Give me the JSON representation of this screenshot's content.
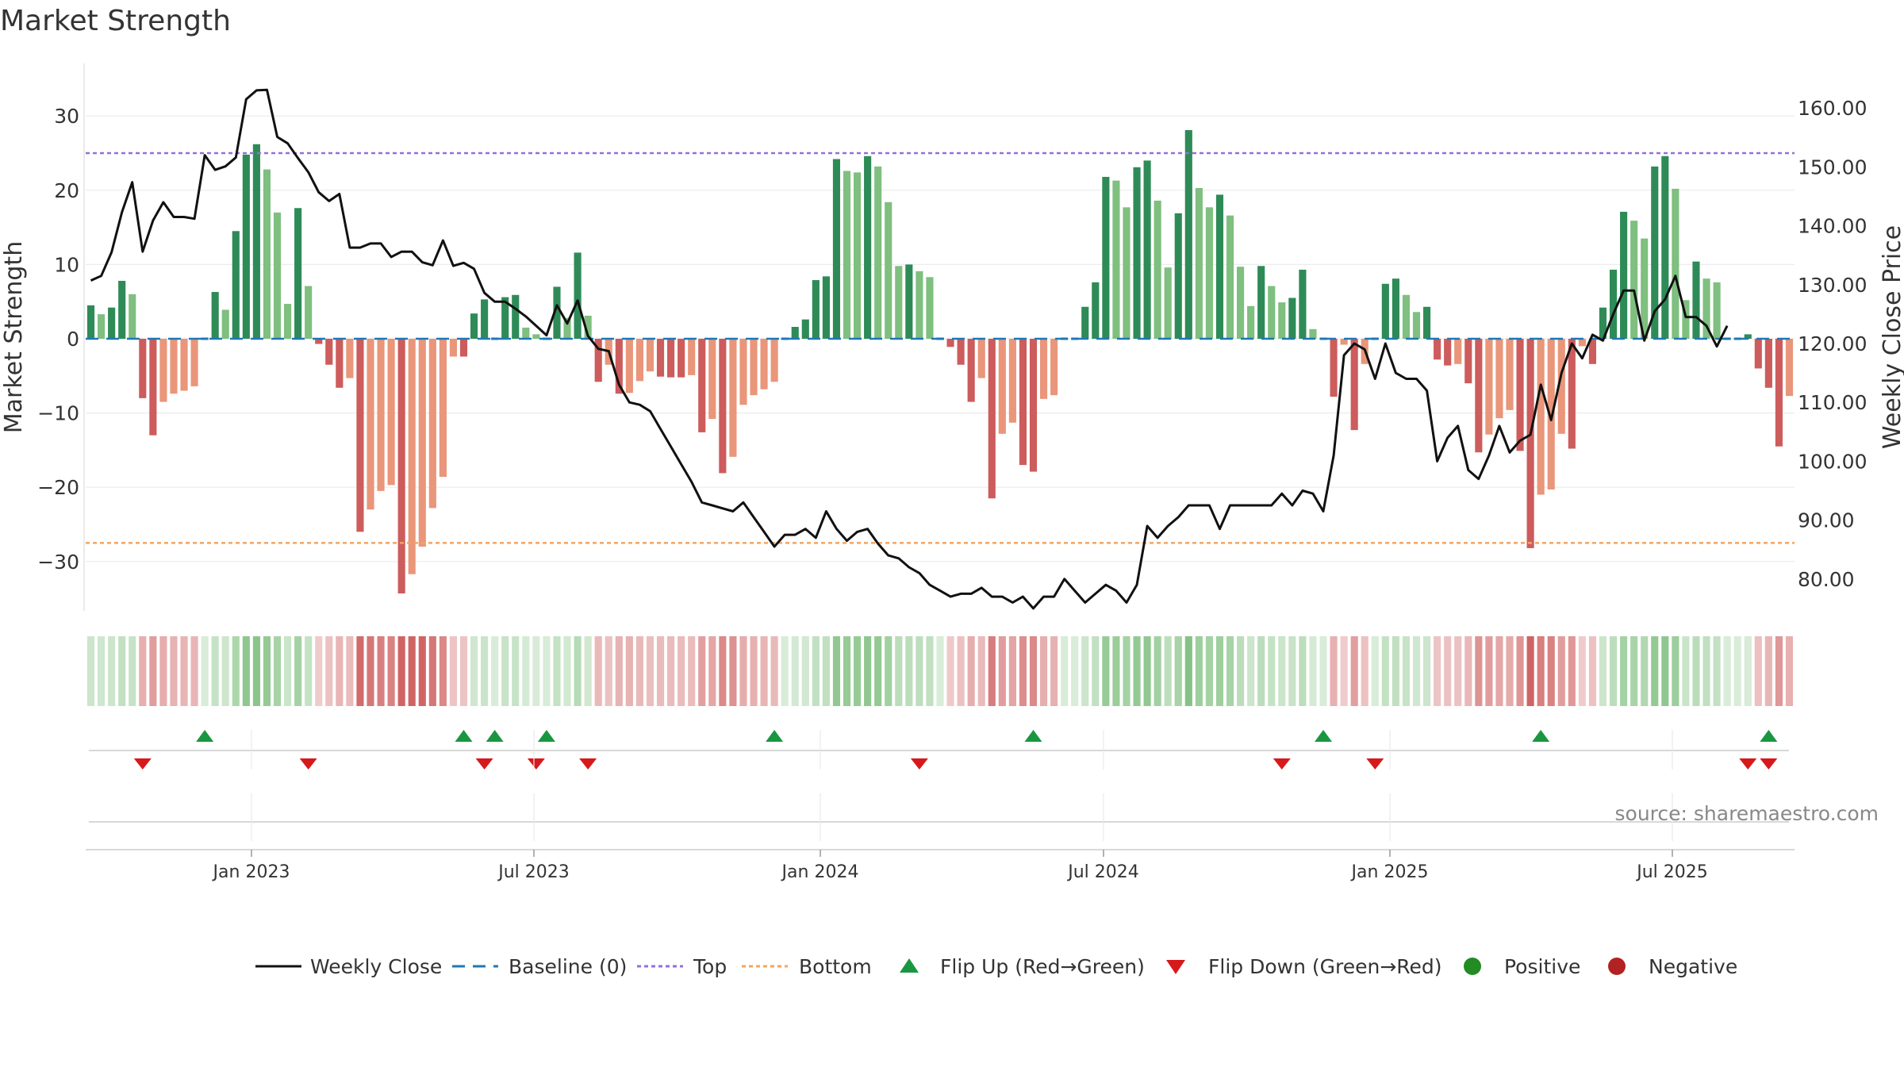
{
  "title": "Market Strength",
  "source": "source: sharemaestro.com",
  "colors": {
    "strong_green": "#2e8b57",
    "light_green": "#7fbf7f",
    "strong_red": "#cd5c5c",
    "light_red": "#e9967a",
    "top_line": "#9370db",
    "bottom_line": "#f4a460",
    "baseline": "#1f77b4",
    "close_line": "#111111",
    "flip_up": "#1a9641",
    "flip_down": "#d7191c",
    "positive": "#228b22",
    "negative": "#b22222"
  },
  "chart_data": {
    "type": "bar",
    "left_axis": {
      "label": "Market Strength",
      "ticks": [
        30,
        20,
        10,
        0,
        -10,
        -20,
        -30
      ],
      "ylim": [
        -37,
        37
      ]
    },
    "right_axis": {
      "label": "Weekly Close Price",
      "ticks": [
        "160.00",
        "150.00",
        "140.00",
        "130.00",
        "120.00",
        "110.00",
        "100.00",
        "90.00",
        "80.00"
      ],
      "ylim": [
        72,
        170
      ]
    },
    "x_ticks": [
      "Jan 2023",
      "Jul 2023",
      "Jan 2024",
      "Jul 2024",
      "Jan 2025",
      "Jul 2025"
    ],
    "top_level": 25,
    "bottom_level": -27.5,
    "strength": [
      4.5,
      3.3,
      4.2,
      7.8,
      6.0,
      -8.0,
      -13.0,
      -8.5,
      -7.4,
      -7.0,
      -6.4,
      0,
      6.3,
      3.9,
      14.5,
      24.8,
      26.2,
      22.8,
      17.0,
      4.7,
      17.6,
      7.1,
      -0.7,
      -3.5,
      -6.6,
      -5.3,
      -26.0,
      -23.0,
      -20.5,
      -19.7,
      -34.3,
      -31.7,
      -28.0,
      -22.8,
      -18.6,
      -2.4,
      -2.4,
      3.4,
      5.3,
      0,
      5.6,
      5.9,
      1.5,
      0.6,
      0,
      7.0,
      2.8,
      11.6,
      3.1,
      -5.8,
      -3.5,
      -7.4,
      -7.3,
      -5.7,
      -4.4,
      -5.1,
      -5.2,
      -5.2,
      -4.9,
      -12.6,
      -10.8,
      -18.1,
      -15.9,
      -8.9,
      -7.6,
      -6.8,
      -5.8,
      0,
      1.6,
      2.6,
      7.9,
      8.4,
      24.2,
      22.6,
      22.4,
      24.6,
      23.2,
      18.4,
      9.8,
      10.0,
      9.1,
      8.3,
      0,
      -1.1,
      -3.5,
      -8.5,
      -5.3,
      -21.5,
      -12.8,
      -11.3,
      -17.0,
      -17.9,
      -8.1,
      -7.6,
      0,
      0,
      4.3,
      7.6,
      21.8,
      21.3,
      17.7,
      23.1,
      24.0,
      18.6,
      9.6,
      16.9,
      28.1,
      20.3,
      17.7,
      19.4,
      16.6,
      9.7,
      4.4,
      9.8,
      7.1,
      4.9,
      5.5,
      9.3,
      1.3,
      0,
      -7.8,
      -0.8,
      -12.3,
      -3.4,
      0,
      7.4,
      8.1,
      5.9,
      3.6,
      4.3,
      -2.8,
      -3.6,
      -3.4,
      -6.0,
      -15.3,
      -12.9,
      -10.7,
      -9.6,
      -15.1,
      -28.2,
      -21.0,
      -20.3,
      -12.8,
      -14.8,
      -1.0,
      -3.4,
      4.2,
      9.3,
      17.1,
      15.9,
      13.5,
      23.2,
      24.6,
      20.2,
      5.2,
      10.4,
      8.1,
      7.6,
      0,
      0,
      0.6,
      -4.0,
      -6.6,
      -14.5,
      -7.7
    ],
    "close": [
      130.7,
      131.5,
      135.5,
      142.3,
      147.4,
      135.6,
      140.9,
      144.0,
      141.5,
      141.5,
      141.2,
      152.0,
      149.5,
      150.1,
      151.6,
      161.5,
      163.0,
      163.1,
      155.1,
      154.0,
      151.5,
      149.1,
      145.7,
      144.2,
      145.4,
      136.3,
      136.3,
      137.0,
      137.0,
      134.7,
      135.6,
      135.6,
      133.8,
      133.3,
      137.5,
      133.2,
      133.7,
      132.7,
      128.6,
      127.1,
      127.1,
      125.9,
      124.6,
      123.0,
      121.4,
      126.5,
      123.4,
      127.3,
      121.3,
      119.1,
      118.7,
      113.0,
      110.0,
      109.6,
      108.5,
      105.5,
      102.5,
      99.5,
      96.5,
      93.0,
      92.5,
      92.0,
      91.5,
      93.0,
      90.5,
      88.0,
      85.5,
      87.5,
      87.5,
      88.5,
      87.0,
      91.5,
      88.5,
      86.5,
      88.0,
      88.5,
      86.0,
      84.0,
      83.5,
      82.0,
      81.0,
      79.0,
      78.0,
      77.0,
      77.5,
      77.5,
      78.5,
      77.0,
      77.0,
      76.0,
      77.0,
      75.0,
      77.0,
      77.0,
      80.0,
      78.0,
      76.0,
      77.5,
      79.0,
      78.0,
      76.0,
      79.0,
      89.0,
      87.0,
      89.0,
      90.5,
      92.5,
      92.5,
      92.5,
      88.5,
      92.5,
      92.5,
      92.5,
      92.5,
      92.5,
      94.5,
      92.5,
      95.0,
      94.5,
      91.5,
      101.0,
      118.0,
      120.0,
      119.0,
      114.0,
      120.0,
      115.0,
      114.0,
      114.0,
      112.0,
      100.0,
      104.0,
      106.0,
      98.5,
      97.0,
      101.0,
      106.0,
      101.5,
      103.5,
      104.5,
      113.0,
      107.0,
      115.0,
      120.0,
      117.5,
      121.5,
      120.5,
      125.0,
      129.0,
      129.0,
      120.5,
      125.5,
      127.5,
      131.5,
      124.5,
      124.5,
      123.0,
      119.5,
      123.0
    ],
    "flip_up_index": [
      11,
      36,
      39,
      44,
      66,
      91,
      119,
      140,
      162
    ],
    "flip_down_index": [
      5,
      21,
      38,
      43,
      48,
      80,
      115,
      124,
      160,
      162
    ],
    "series": [
      {
        "name": "Weekly Close"
      },
      {
        "name": "Baseline (0)"
      },
      {
        "name": "Top"
      },
      {
        "name": "Bottom"
      },
      {
        "name": "Flip Up (Red→Green)"
      },
      {
        "name": "Flip Down (Green→Red)"
      },
      {
        "name": "Positive"
      },
      {
        "name": "Negative"
      }
    ]
  }
}
